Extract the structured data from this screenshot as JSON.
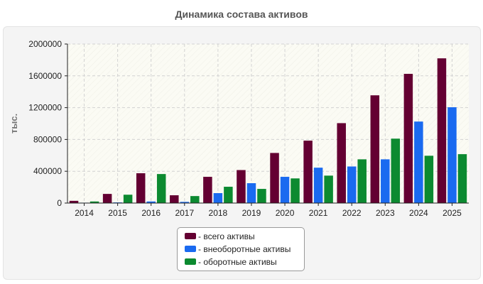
{
  "chart_data": {
    "type": "bar",
    "title": "Динамика состава активов",
    "ylabel": "тыс.",
    "xlabel": "",
    "categories": [
      "2014",
      "2015",
      "2016",
      "2017",
      "2018",
      "2019",
      "2020",
      "2021",
      "2022",
      "2023",
      "2024",
      "2025"
    ],
    "ylim": [
      0,
      2000000
    ],
    "yticks": [
      0,
      400000,
      800000,
      1200000,
      1600000,
      2000000
    ],
    "ytick_labels": [
      "0",
      "400000",
      "800000",
      "1200000",
      "1600000",
      "2000000"
    ],
    "grid": true,
    "legend_position": "bottom-center",
    "series": [
      {
        "name": "- всего активы",
        "color": "#640032",
        "values": [
          28000,
          115000,
          375000,
          98000,
          330000,
          415000,
          630000,
          785000,
          1005000,
          1355000,
          1625000,
          1820000
        ]
      },
      {
        "name": "- внеоборотные активы",
        "color": "#1a6af0",
        "values": [
          5000,
          8000,
          20000,
          15000,
          125000,
          250000,
          330000,
          445000,
          460000,
          550000,
          1025000,
          1205000
        ]
      },
      {
        "name": "- оборотные активы",
        "color": "#0c8a30",
        "values": [
          20000,
          105000,
          365000,
          88000,
          205000,
          178000,
          310000,
          345000,
          550000,
          810000,
          595000,
          615000
        ]
      }
    ]
  }
}
